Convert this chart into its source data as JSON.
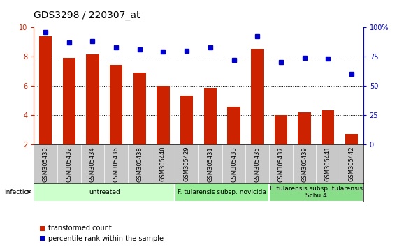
{
  "title": "GDS3298 / 220307_at",
  "samples": [
    "GSM305430",
    "GSM305432",
    "GSM305434",
    "GSM305436",
    "GSM305438",
    "GSM305440",
    "GSM305429",
    "GSM305431",
    "GSM305433",
    "GSM305435",
    "GSM305437",
    "GSM305439",
    "GSM305441",
    "GSM305442"
  ],
  "bar_values": [
    9.4,
    7.9,
    8.15,
    7.45,
    6.9,
    6.0,
    5.35,
    5.85,
    4.55,
    8.5,
    4.0,
    4.2,
    4.35,
    2.7
  ],
  "dot_values": [
    96,
    87,
    88,
    83,
    81,
    79,
    80,
    83,
    72,
    92,
    70,
    74,
    73,
    60
  ],
  "bar_bottom": 2.0,
  "ylim_left": [
    2,
    10
  ],
  "ylim_right": [
    0,
    100
  ],
  "yticks_left": [
    2,
    4,
    6,
    8,
    10
  ],
  "yticks_right": [
    0,
    25,
    50,
    75,
    100
  ],
  "yticklabels_right": [
    "0",
    "25",
    "50",
    "75",
    "100%"
  ],
  "bar_color": "#cc2200",
  "dot_color": "#0000cc",
  "groups": [
    {
      "label": "untreated",
      "start": 0,
      "end": 6,
      "color": "#ccffcc"
    },
    {
      "label": "F. tularensis subsp. novicida",
      "start": 6,
      "end": 10,
      "color": "#99ee99"
    },
    {
      "label": "F. tularensis subsp. tularensis\nSchu 4",
      "start": 10,
      "end": 14,
      "color": "#88dd88"
    }
  ],
  "infection_label": "infection",
  "legend_bar_label": "transformed count",
  "legend_dot_label": "percentile rank within the sample",
  "background_color": "#ffffff",
  "tick_label_area_color": "#c8c8c8",
  "title_fontsize": 10,
  "tick_fontsize": 7,
  "group_fontsize": 6.5,
  "sample_fontsize": 6
}
